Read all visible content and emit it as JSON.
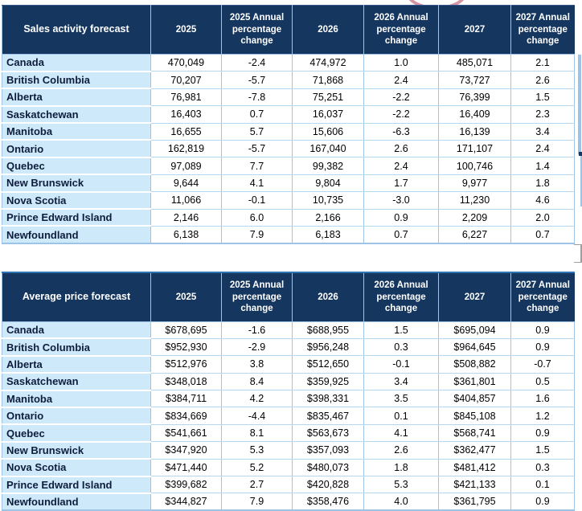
{
  "colors": {
    "header_bg": "#15365e",
    "header_text": "#ffffff",
    "label_cell_bg": "#cde9fa",
    "label_text": "#0f1d3d",
    "grid_blue": "#9dc3e6",
    "row_line_blue": "#b4d8f0",
    "accent_blue": "#2e74b5",
    "annotation_red": "#d794a3",
    "artifact_gray": "#9e9e9e"
  },
  "chart_data": [
    {
      "type": "table",
      "title": "Sales activity forecast",
      "columns": [
        "2025",
        "2025 Annual percentage change",
        "2026",
        "2026 Annual percentage change",
        "2027",
        "2027 Annual percentage change"
      ],
      "rows": [
        {
          "label": "Canada",
          "values": [
            "470,049",
            "-2.4",
            "474,972",
            "1.0",
            "485,071",
            "2.1"
          ]
        },
        {
          "label": "British Columbia",
          "values": [
            "70,207",
            "-5.7",
            "71,868",
            "2.4",
            "73,727",
            "2.6"
          ]
        },
        {
          "label": "Alberta",
          "values": [
            "76,981",
            "-7.8",
            "75,251",
            "-2.2",
            "76,399",
            "1.5"
          ]
        },
        {
          "label": "Saskatchewan",
          "values": [
            "16,403",
            "0.7",
            "16,037",
            "-2.2",
            "16,409",
            "2.3"
          ]
        },
        {
          "label": "Manitoba",
          "values": [
            "16,655",
            "5.7",
            "15,606",
            "-6.3",
            "16,139",
            "3.4"
          ]
        },
        {
          "label": "Ontario",
          "values": [
            "162,819",
            "-5.7",
            "167,040",
            "2.6",
            "171,107",
            "2.4"
          ]
        },
        {
          "label": "Quebec",
          "values": [
            "97,089",
            "7.7",
            "99,382",
            "2.4",
            "100,746",
            "1.4"
          ]
        },
        {
          "label": "New Brunswick",
          "values": [
            "9,644",
            "4.1",
            "9,804",
            "1.7",
            "9,977",
            "1.8"
          ]
        },
        {
          "label": "Nova Scotia",
          "values": [
            "11,066",
            "-0.1",
            "10,735",
            "-3.0",
            "11,230",
            "4.6"
          ]
        },
        {
          "label": "Prince Edward Island",
          "values": [
            "2,146",
            "6.0",
            "2,166",
            "0.9",
            "2,209",
            "2.0"
          ]
        },
        {
          "label": "Newfoundland",
          "values": [
            "6,138",
            "7.9",
            "6,183",
            "0.7",
            "6,227",
            "0.7"
          ]
        }
      ]
    },
    {
      "type": "table",
      "title": "Average price forecast",
      "columns": [
        "2025",
        "2025 Annual percentage change",
        "2026",
        "2026 Annual percentage change",
        "2027",
        "2027 Annual percentage change"
      ],
      "rows": [
        {
          "label": "Canada",
          "values": [
            "$678,695",
            "-1.6",
            "$688,955",
            "1.5",
            "$695,094",
            "0.9"
          ]
        },
        {
          "label": "British Columbia",
          "values": [
            "$952,930",
            "-2.9",
            "$956,248",
            "0.3",
            "$964,645",
            "0.9"
          ]
        },
        {
          "label": "Alberta",
          "values": [
            "$512,976",
            "3.8",
            "$512,650",
            "-0.1",
            "$508,882",
            "-0.7"
          ]
        },
        {
          "label": "Saskatchewan",
          "values": [
            "$348,018",
            "8.4",
            "$359,925",
            "3.4",
            "$361,801",
            "0.5"
          ]
        },
        {
          "label": "Manitoba",
          "values": [
            "$384,711",
            "4.2",
            "$398,331",
            "3.5",
            "$404,857",
            "1.6"
          ]
        },
        {
          "label": "Ontario",
          "values": [
            "$834,669",
            "-4.4",
            "$835,467",
            "0.1",
            "$845,108",
            "1.2"
          ]
        },
        {
          "label": "Quebec",
          "values": [
            "$541,661",
            "8.1",
            "$563,673",
            "4.1",
            "$568,741",
            "0.9"
          ]
        },
        {
          "label": "New Brunswick",
          "values": [
            "$347,920",
            "5.3",
            "$357,093",
            "2.6",
            "$362,477",
            "1.5"
          ]
        },
        {
          "label": "Nova Scotia",
          "values": [
            "$471,440",
            "5.2",
            "$480,073",
            "1.8",
            "$481,412",
            "0.3"
          ]
        },
        {
          "label": "Prince Edward Island",
          "values": [
            "$399,682",
            "2.7",
            "$420,828",
            "5.3",
            "$421,133",
            "0.1"
          ]
        },
        {
          "label": "Newfoundland",
          "values": [
            "$344,827",
            "7.9",
            "$358,476",
            "4.0",
            "$361,795",
            "0.9"
          ]
        }
      ]
    }
  ]
}
